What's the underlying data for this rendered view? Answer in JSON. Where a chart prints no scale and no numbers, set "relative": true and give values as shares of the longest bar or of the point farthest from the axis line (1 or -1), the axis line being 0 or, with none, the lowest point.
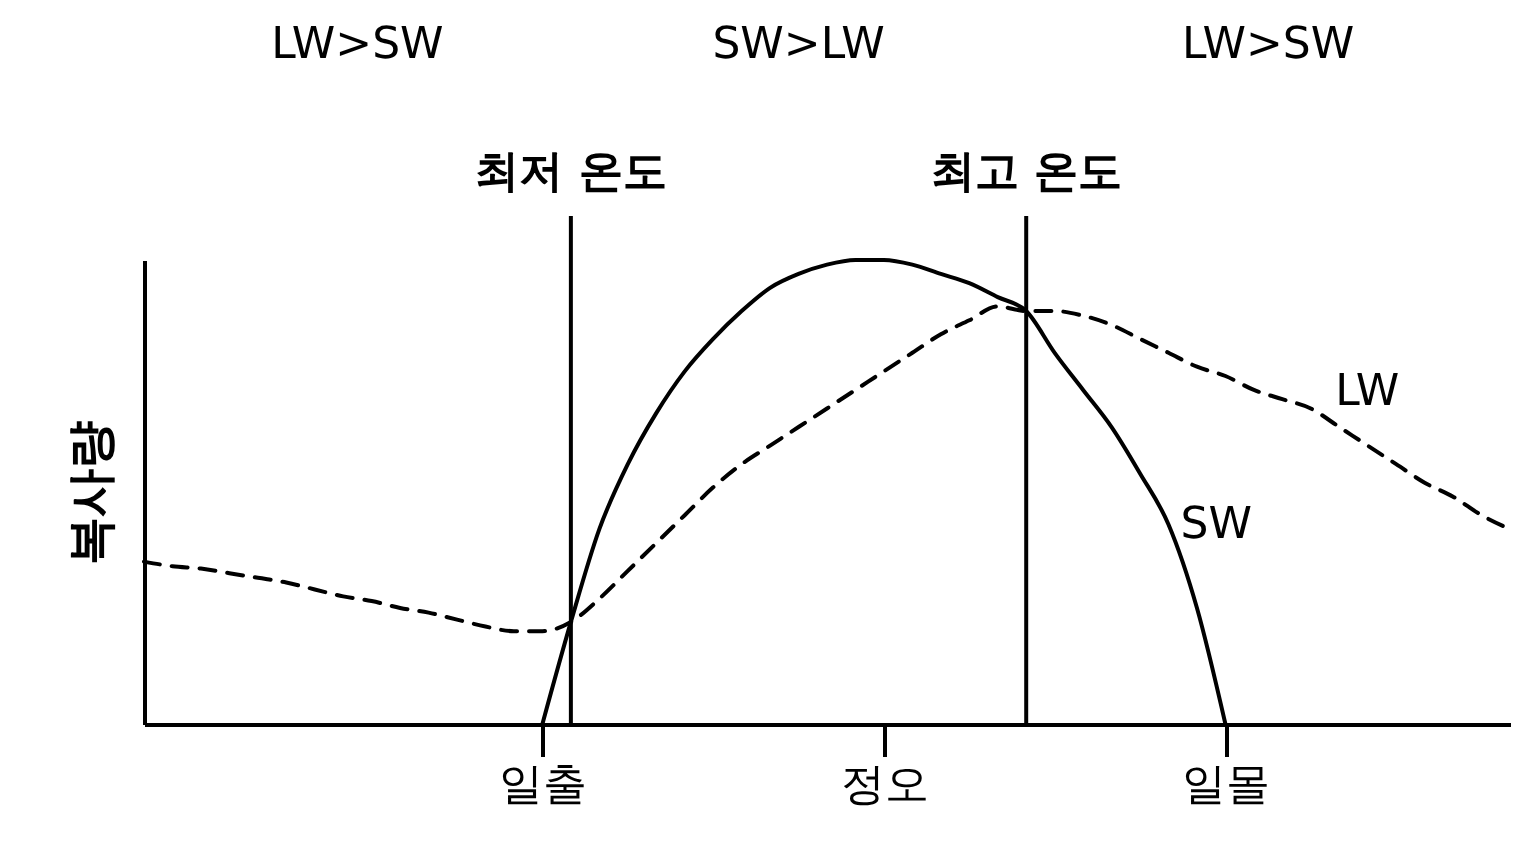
{
  "chart_data": {
    "type": "line",
    "relative": true,
    "ylabel": "복사량",
    "categories": [
      null,
      null,
      null,
      null,
      null,
      null,
      null,
      null,
      null,
      null,
      null,
      null,
      null,
      null,
      "일출",
      null,
      null,
      null,
      null,
      null,
      null,
      null,
      null,
      null,
      null,
      null,
      "정오",
      null,
      null,
      null,
      null,
      null,
      null,
      null,
      null,
      null,
      null,
      null,
      "일몰",
      null,
      null,
      null,
      null,
      null,
      null,
      null,
      null,
      null,
      null
    ],
    "annotations": [
      "LW>SW",
      "SW>LW",
      "LW>SW",
      "최저 온도",
      "최고 온도"
    ],
    "series": [
      {
        "name": "LW",
        "color": "#000000",
        "line_style": "dashed",
        "values": [
          0.35,
          0.34,
          0.335,
          0.325,
          0.315,
          0.305,
          0.29,
          0.275,
          0.265,
          0.25,
          0.24,
          0.225,
          0.21,
          0.2,
          0.2,
          0.22,
          0.27,
          0.33,
          0.39,
          0.45,
          0.51,
          0.56,
          0.6,
          0.64,
          0.68,
          0.72,
          0.76,
          0.8,
          0.84,
          0.87,
          0.9,
          0.89,
          0.89,
          0.88,
          0.86,
          0.83,
          0.8,
          0.77,
          0.75,
          0.72,
          0.7,
          0.68,
          0.64,
          0.6,
          0.56,
          0.52,
          0.49,
          0.45,
          0.42
        ]
      },
      {
        "name": "SW",
        "color": "#000000",
        "line_style": "solid",
        "values": [
          null,
          null,
          null,
          null,
          null,
          null,
          null,
          null,
          null,
          null,
          null,
          null,
          null,
          null,
          0,
          0.22,
          0.42,
          0.56,
          0.67,
          0.76,
          0.83,
          0.89,
          0.94,
          0.97,
          0.99,
          1,
          1,
          0.99,
          0.97,
          0.95,
          0.92,
          0.89,
          0.8,
          0.72,
          0.64,
          0.54,
          0.43,
          0.25,
          0,
          null,
          null,
          null,
          null,
          null,
          null,
          null,
          null,
          null,
          null
        ]
      }
    ]
  }
}
